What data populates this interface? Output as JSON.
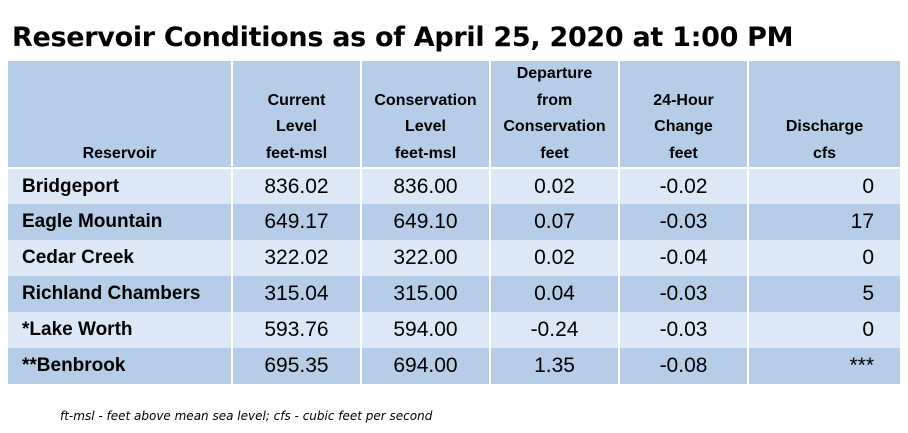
{
  "title": "Reservoir Conditions as of April 25, 2020 at 1:00 PM",
  "table": {
    "headers": [
      {
        "lines": [
          "Reservoir"
        ],
        "units": ""
      },
      {
        "lines": [
          "Current",
          "Level"
        ],
        "units": "feet-msl"
      },
      {
        "lines": [
          "Conservation",
          "Level"
        ],
        "units": "feet-msl"
      },
      {
        "lines": [
          "Departure",
          "from",
          "Conservation"
        ],
        "units": "feet"
      },
      {
        "lines": [
          "24-Hour",
          "Change"
        ],
        "units": "feet"
      },
      {
        "lines": [
          "Discharge"
        ],
        "units": "cfs"
      }
    ],
    "rows": [
      {
        "name": "Bridgeport",
        "current": "836.02",
        "conservation": "836.00",
        "departure": "0.02",
        "change": "-0.02",
        "discharge": "0"
      },
      {
        "name": "Eagle Mountain",
        "current": "649.17",
        "conservation": "649.10",
        "departure": "0.07",
        "change": "-0.03",
        "discharge": "17"
      },
      {
        "name": "Cedar Creek",
        "current": "322.02",
        "conservation": "322.00",
        "departure": "0.02",
        "change": "-0.04",
        "discharge": "0"
      },
      {
        "name": "Richland Chambers",
        "current": "315.04",
        "conservation": "315.00",
        "departure": "0.04",
        "change": "-0.03",
        "discharge": "5"
      },
      {
        "name": "*Lake Worth",
        "current": "593.76",
        "conservation": "594.00",
        "departure": "-0.24",
        "change": "-0.03",
        "discharge": "0"
      },
      {
        "name": "**Benbrook",
        "current": "695.35",
        "conservation": "694.00",
        "departure": "1.35",
        "change": "-0.08",
        "discharge": "***"
      }
    ]
  },
  "footnote": "ft-msl - feet above mean sea level; cfs - cubic feet per second",
  "colors": {
    "header_bg": "#b6cde8",
    "row_light": "#dce8f5",
    "row_dark": "#b6cde8"
  }
}
